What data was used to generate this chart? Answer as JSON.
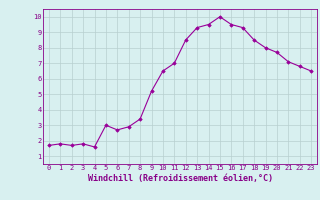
{
  "x": [
    0,
    1,
    2,
    3,
    4,
    5,
    6,
    7,
    8,
    9,
    10,
    11,
    12,
    13,
    14,
    15,
    16,
    17,
    18,
    19,
    20,
    21,
    22,
    23
  ],
  "y": [
    1.7,
    1.8,
    1.7,
    1.8,
    1.6,
    3.0,
    2.7,
    2.9,
    3.4,
    5.2,
    6.5,
    7.0,
    8.5,
    9.3,
    9.5,
    10.0,
    9.5,
    9.3,
    8.5,
    8.0,
    7.7,
    7.1,
    6.8,
    6.5
  ],
  "line_color": "#990099",
  "marker": "D",
  "marker_size": 1.8,
  "line_width": 0.8,
  "xlabel": "Windchill (Refroidissement éolien,°C)",
  "xlim": [
    -0.5,
    23.5
  ],
  "ylim": [
    0.5,
    10.5
  ],
  "yticks": [
    1,
    2,
    3,
    4,
    5,
    6,
    7,
    8,
    9,
    10
  ],
  "xticks": [
    0,
    1,
    2,
    3,
    4,
    5,
    6,
    7,
    8,
    9,
    10,
    11,
    12,
    13,
    14,
    15,
    16,
    17,
    18,
    19,
    20,
    21,
    22,
    23
  ],
  "bg_color": "#d8f0f0",
  "grid_color": "#b8d0d0",
  "tick_fontsize": 5.0,
  "xlabel_fontsize": 6.0,
  "axis_label_color": "#880088"
}
